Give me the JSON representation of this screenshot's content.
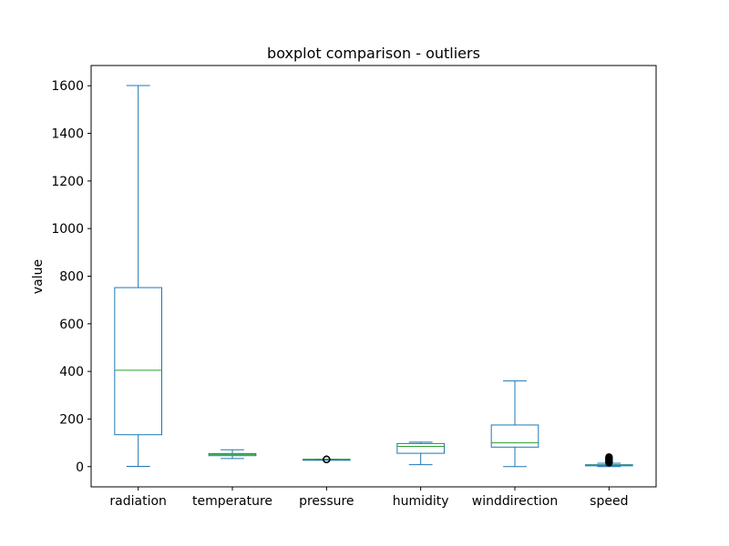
{
  "chart_data": {
    "type": "boxplot",
    "title": "boxplot comparison - outliers",
    "xlabel": "",
    "ylabel": "value",
    "ylim": [
      -85,
      1685
    ],
    "yticks": [
      0,
      200,
      400,
      600,
      800,
      1000,
      1200,
      1400,
      1600
    ],
    "grid": false,
    "categories": [
      "radiation",
      "temperature",
      "pressure",
      "humidity",
      "winddirection",
      "speed"
    ],
    "series": [
      {
        "whisker_low": 1.1,
        "q1": 134,
        "median": 405,
        "q3": 752,
        "whisker_high": 1601,
        "outliers": []
      },
      {
        "whisker_low": 34,
        "q1": 46,
        "median": 50,
        "q3": 55,
        "whisker_high": 71,
        "outliers": []
      },
      {
        "whisker_low": 30.34,
        "q1": 30.4,
        "median": 30.43,
        "q3": 30.46,
        "whisker_high": 30.56,
        "outliers": [
          30.19,
          30.2,
          30.22,
          30.24,
          30.26,
          30.28,
          30.3
        ]
      },
      {
        "whisker_low": 8,
        "q1": 56,
        "median": 85,
        "q3": 97,
        "whisker_high": 103,
        "outliers": []
      },
      {
        "whisker_low": 0.1,
        "q1": 82,
        "median": 100,
        "q3": 175,
        "whisker_high": 360,
        "outliers": []
      },
      {
        "whisker_low": 0,
        "q1": 3.4,
        "median": 5.6,
        "q3": 7.9,
        "whisker_high": 14.6,
        "outliers": [
          15.8,
          18.0,
          20.2,
          22.5,
          24.7,
          27.0,
          29.2,
          31.5,
          33.7,
          36.0,
          38.2,
          40.5
        ]
      }
    ],
    "colors": {
      "box": "#1f77b4",
      "median": "#2ca02c",
      "outlier": "#000000",
      "axis": "#000000"
    }
  }
}
